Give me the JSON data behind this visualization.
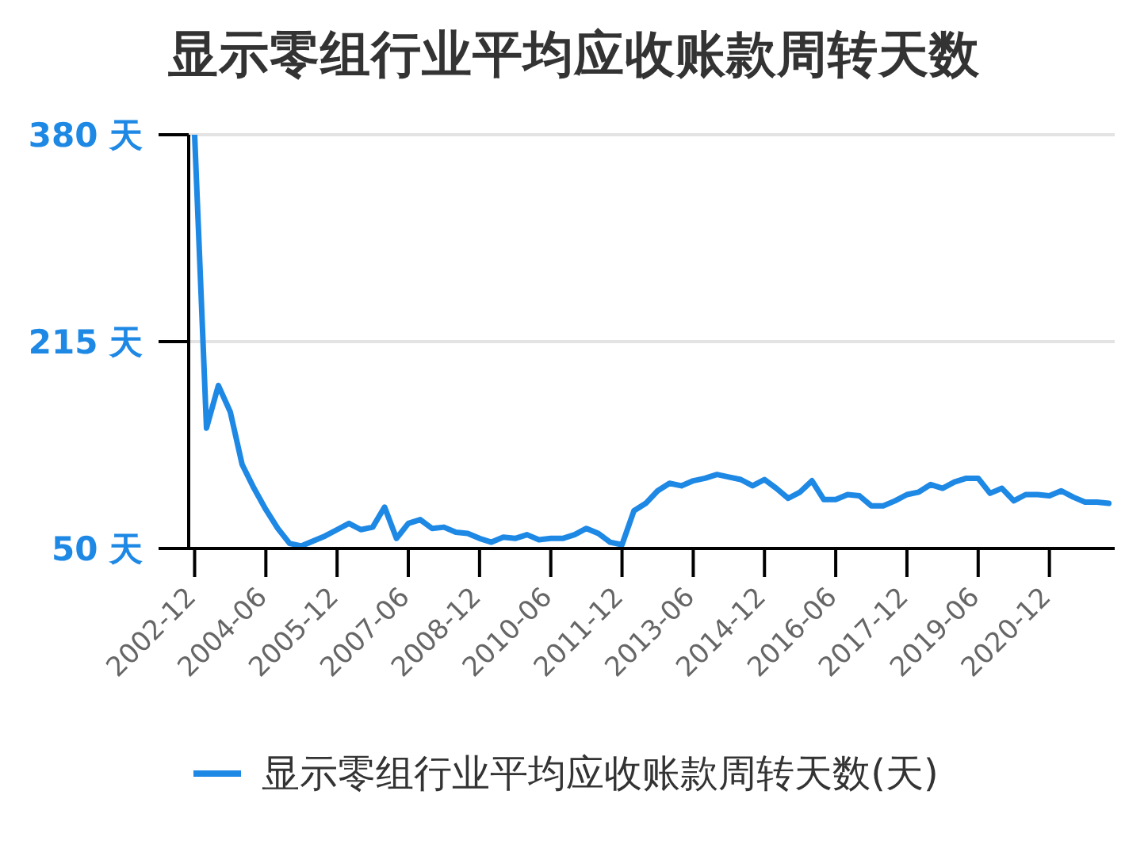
{
  "chart_data": {
    "type": "line",
    "title": "显示零组行业平均应收账款周转天数",
    "categories": [
      "2002-12",
      null,
      null,
      null,
      null,
      null,
      "2004-06",
      null,
      null,
      null,
      null,
      null,
      "2005-12",
      null,
      null,
      null,
      null,
      null,
      "2007-06",
      null,
      null,
      null,
      null,
      null,
      "2008-12",
      null,
      null,
      null,
      null,
      null,
      "2010-06",
      null,
      null,
      null,
      null,
      null,
      "2011-12",
      null,
      null,
      null,
      null,
      null,
      "2013-06",
      null,
      null,
      null,
      null,
      null,
      "2014-12",
      null,
      null,
      null,
      null,
      null,
      "2016-06",
      null,
      null,
      null,
      null,
      null,
      "2017-12",
      null,
      null,
      null,
      null,
      null,
      "2019-06",
      null,
      null,
      null,
      null,
      null,
      "2020-12",
      null,
      null,
      null,
      null,
      null
    ],
    "series": [
      {
        "name": "显示零组行业平均应收账款周转天数(天)",
        "color": "#1e88e5",
        "values": [
          380,
          146,
          180,
          159,
          117,
          98,
          81,
          66,
          54,
          52,
          56,
          60,
          65,
          70,
          65,
          67,
          83,
          58,
          70,
          73,
          66,
          67,
          63,
          62,
          58,
          55,
          59,
          58,
          61,
          57,
          58,
          58,
          61,
          66,
          62,
          55,
          53,
          80,
          86,
          96,
          102,
          100,
          104,
          106,
          109,
          107,
          105,
          100,
          105,
          98,
          90,
          95,
          104,
          89,
          89,
          93,
          92,
          84,
          84,
          88,
          93,
          95,
          101,
          98,
          103,
          106,
          106,
          94,
          98,
          88,
          93,
          93,
          92,
          96,
          91,
          87,
          87,
          86
        ]
      }
    ],
    "ylim": [
      50,
      380
    ],
    "yticks": [
      {
        "value": 50,
        "label": "50 天"
      },
      {
        "value": 215,
        "label": "215 天"
      },
      {
        "value": 380,
        "label": "380 天"
      }
    ],
    "grid": "y",
    "legend": "bottom",
    "marker": "none"
  }
}
